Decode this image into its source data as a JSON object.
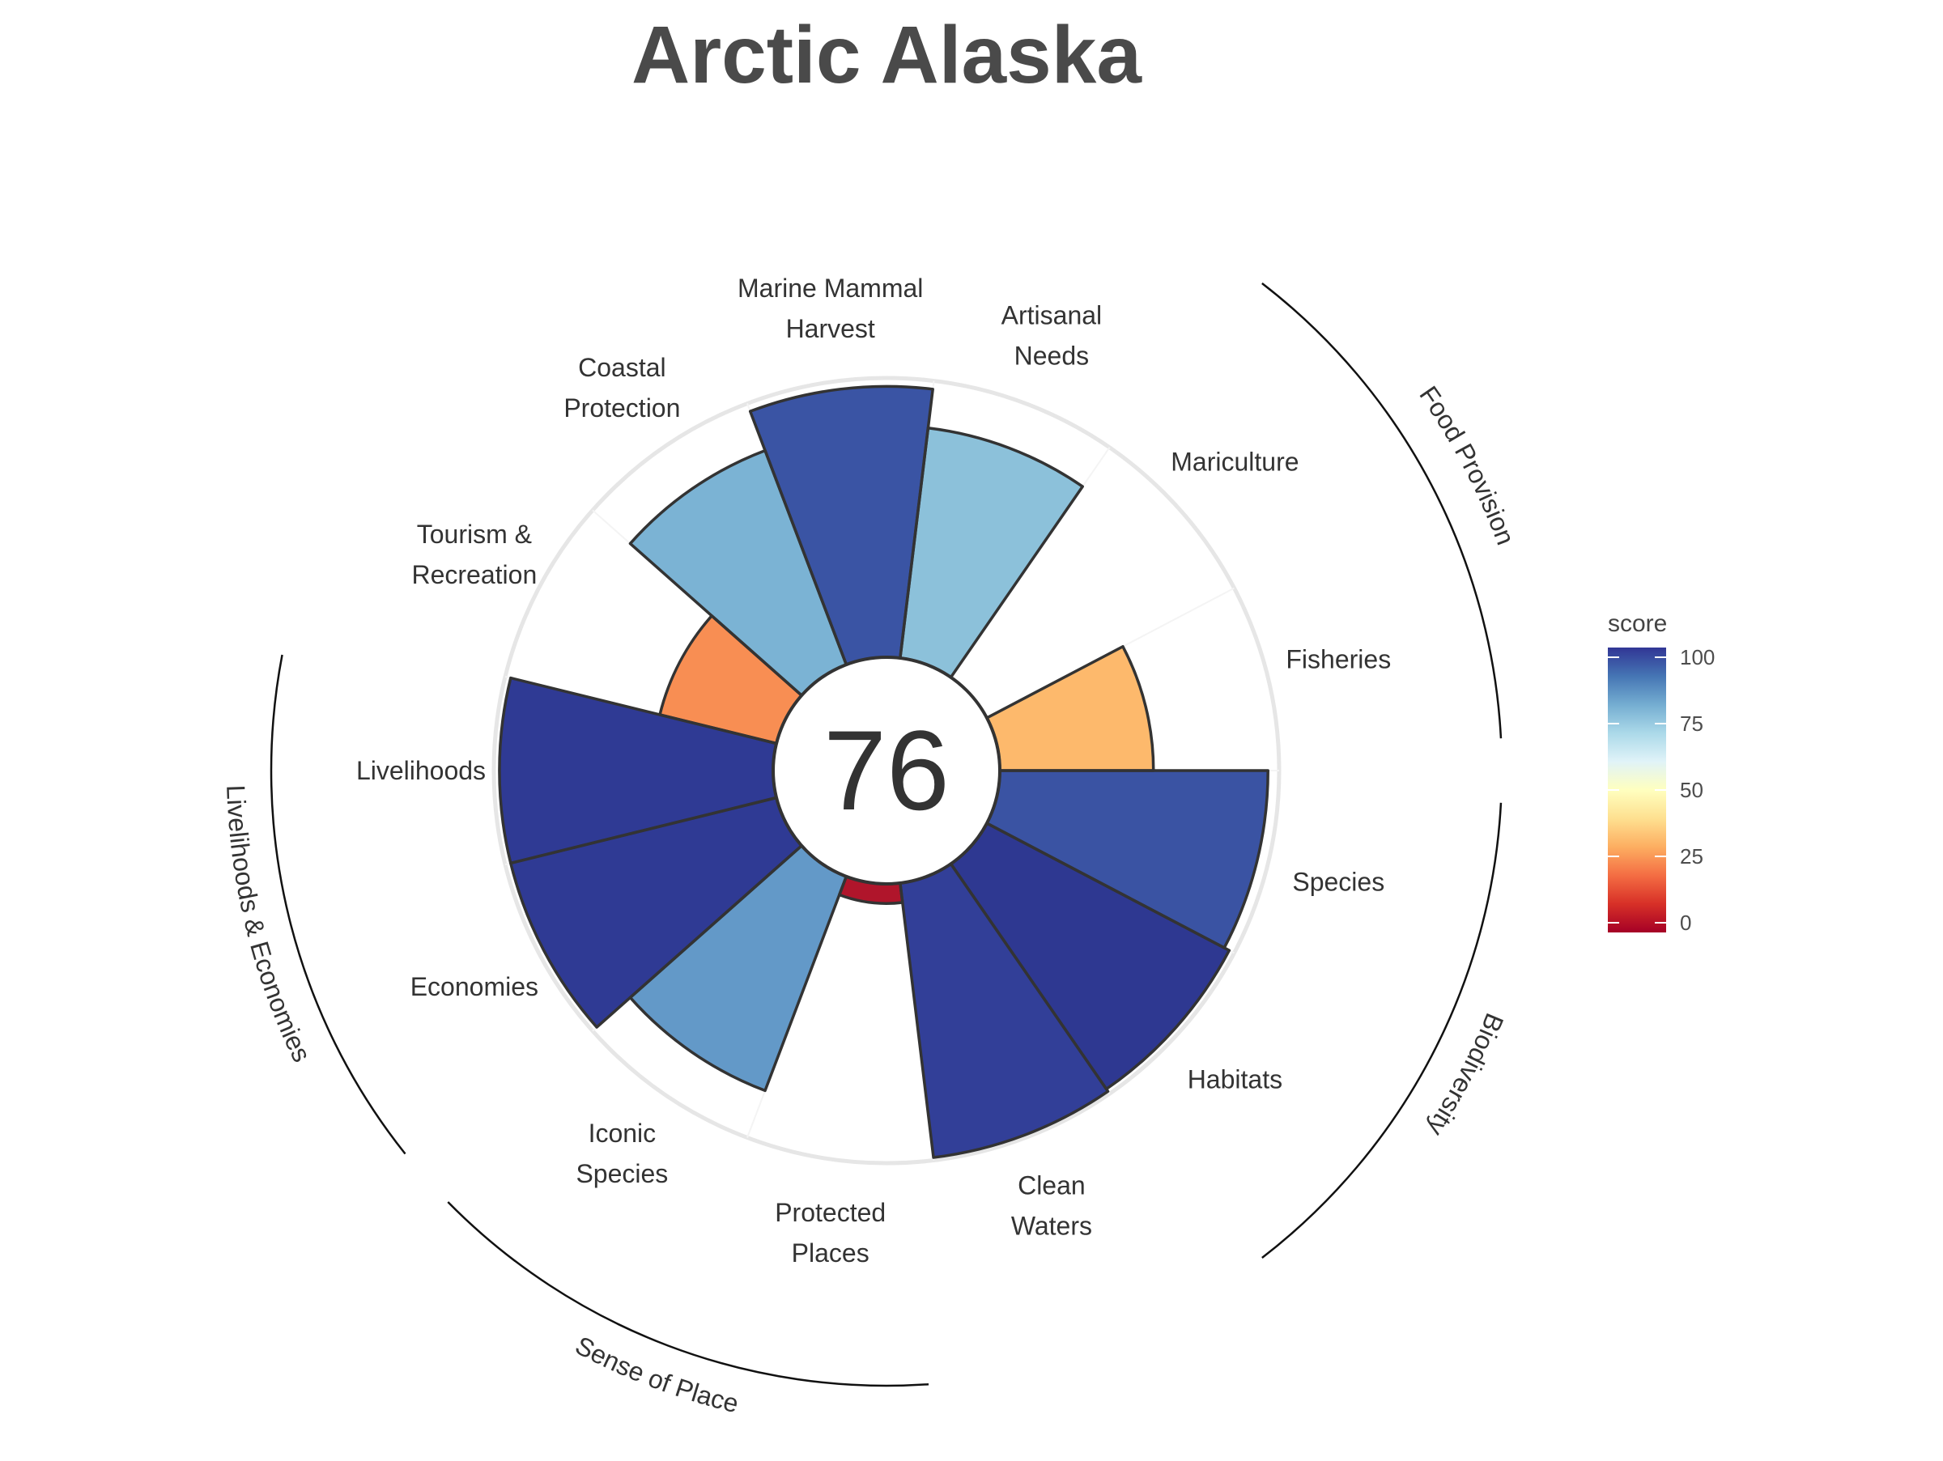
{
  "chart_data": {
    "type": "flower",
    "title": "Arctic Alaska",
    "center_score": "76",
    "score_range": [
      0,
      100
    ],
    "petals": [
      {
        "label": "Fisheries",
        "value": 55,
        "color": "#FDB96C"
      },
      {
        "label": "Mariculture",
        "value": null,
        "color": null
      },
      {
        "label": "Artisanal Needs",
        "value": 83,
        "color": "#8CC1DA"
      },
      {
        "label": "Marine Mammal Harvest",
        "value": 97,
        "color": "#3A54A4"
      },
      {
        "label": "Coastal Protection",
        "value": 82,
        "color": "#7BB3D4"
      },
      {
        "label": "Tourism & Recreation",
        "value": 43,
        "color": "#F88E53"
      },
      {
        "label": "Livelihoods",
        "value": 98,
        "color": "#2F3A94"
      },
      {
        "label": "Economies",
        "value": 98,
        "color": "#2F3A94"
      },
      {
        "label": "Iconic Species",
        "value": 82,
        "color": "#6399C8"
      },
      {
        "label": "Protected Places",
        "value": 7,
        "color": "#B0152B"
      },
      {
        "label": "Clean Waters",
        "value": 99,
        "color": "#323F98"
      },
      {
        "label": "Habitats",
        "value": 98,
        "color": "#2E3891"
      },
      {
        "label": "Species",
        "value": 96,
        "color": "#3A53A3"
      }
    ],
    "groups": [
      "Food Provision",
      "Biodiversity",
      "Sense of Place",
      "Livelihoods & Economies"
    ],
    "legend": {
      "title": "score",
      "ticks": [
        "100",
        "75",
        "50",
        "25",
        "0"
      ],
      "gradient": [
        "#313695",
        "#4575B4",
        "#74ADD1",
        "#ABD9E9",
        "#E0F3F8",
        "#FFFFBF",
        "#FEE090",
        "#FDAE61",
        "#F46D43",
        "#D73027",
        "#A50026"
      ],
      "placement": "right"
    }
  }
}
